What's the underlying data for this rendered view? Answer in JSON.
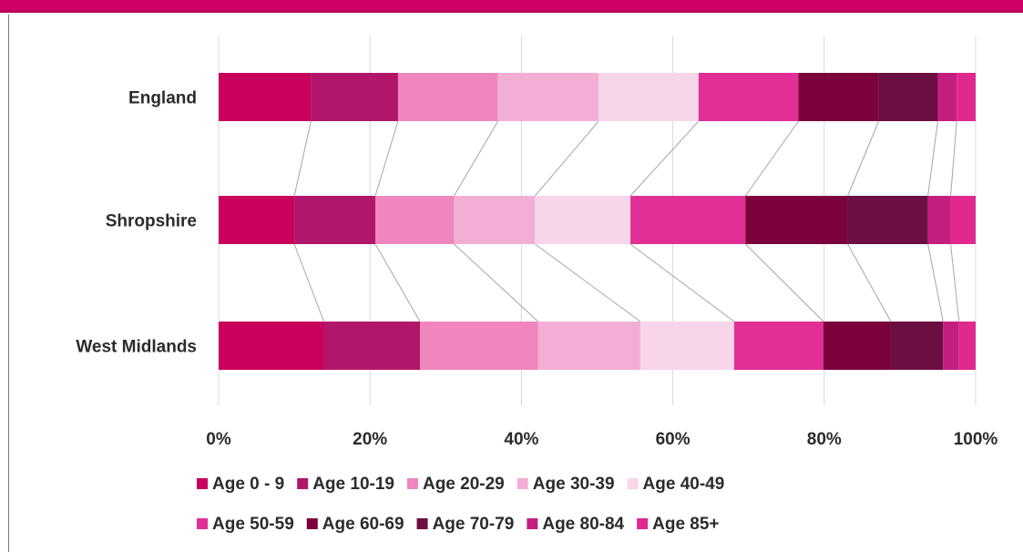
{
  "chart_data": {
    "type": "bar",
    "orientation": "horizontal",
    "stacked": "percent",
    "categories": [
      "England",
      "Shropshire",
      "West Midlands"
    ],
    "series": [
      {
        "name": "Age 0 - 9",
        "color": "#c9005c",
        "values": [
          12.2,
          10.0,
          13.9
        ]
      },
      {
        "name": "Age 10-19",
        "color": "#b1166b",
        "values": [
          11.5,
          10.7,
          12.7
        ]
      },
      {
        "name": "Age 20-29",
        "color": "#ef86bd",
        "values": [
          13.2,
          10.4,
          15.6
        ]
      },
      {
        "name": "Age 30-39",
        "color": "#f3aed5",
        "values": [
          13.3,
          10.7,
          13.5
        ]
      },
      {
        "name": "Age 40-49",
        "color": "#f8d6e9",
        "values": [
          13.2,
          12.6,
          12.4
        ]
      },
      {
        "name": "Age 50-59",
        "color": "#e22f96",
        "values": [
          13.2,
          15.2,
          11.8
        ]
      },
      {
        "name": "Age 60-69",
        "color": "#7b003b",
        "values": [
          10.6,
          13.5,
          8.9
        ]
      },
      {
        "name": "Age 70-79",
        "color": "#6b0e41",
        "values": [
          7.8,
          10.6,
          6.9
        ]
      },
      {
        "name": "Age 80-84",
        "color": "#c41f80",
        "values": [
          2.5,
          3.0,
          2.1
        ]
      },
      {
        "name": "Age 85+",
        "color": "#e0288f",
        "values": [
          2.5,
          3.3,
          2.2
        ]
      }
    ],
    "xlim": [
      0,
      100
    ],
    "x_ticks": [
      "0%",
      "20%",
      "40%",
      "60%",
      "80%",
      "100%"
    ],
    "grid": true,
    "series_lines": true,
    "legend_position": "bottom"
  }
}
